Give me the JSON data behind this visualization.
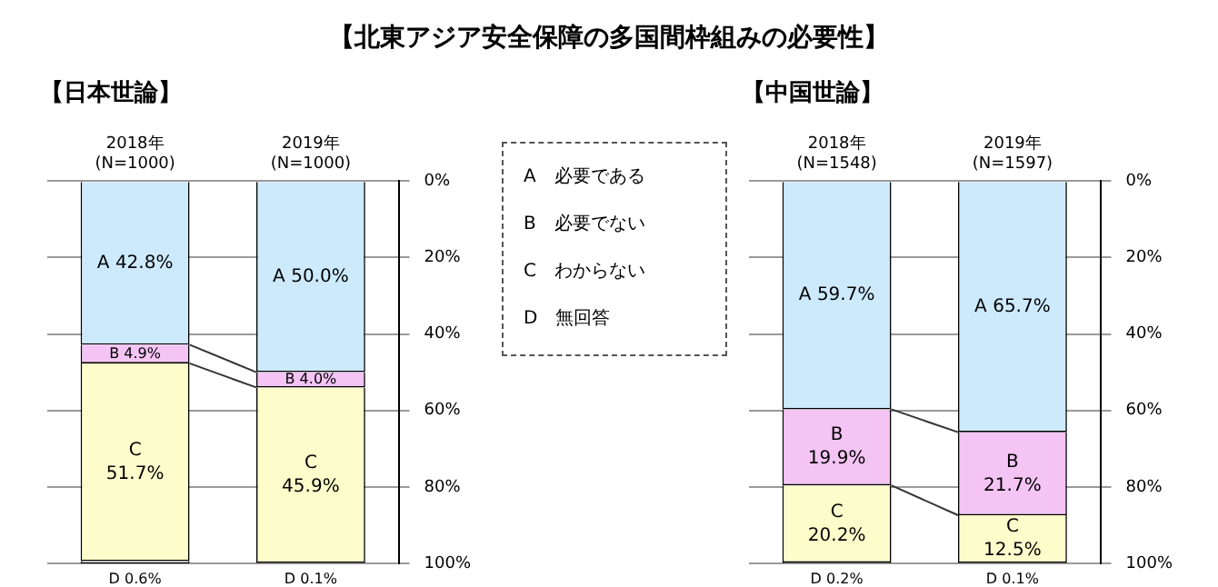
{
  "chart_data": [
    {
      "type": "bar",
      "title": "【北東アジア安全保障の多国間枠組みの必要性】",
      "subtitle": "【日本世論】",
      "categories": [
        "2018年\n(N=1000)",
        "2019年\n(N=1000)"
      ],
      "stacked": true,
      "ylim": [
        100,
        0
      ],
      "yticks": [
        {
          "value": 0,
          "label": "0%"
        },
        {
          "value": 20,
          "label": "20%"
        },
        {
          "value": 40,
          "label": "40%"
        },
        {
          "value": 60,
          "label": "60%"
        },
        {
          "value": 80,
          "label": "80%"
        },
        {
          "value": 100,
          "label": "100%"
        }
      ],
      "grid": "y",
      "legend": false,
      "annotations": [
        "A　必要である",
        "B　必要でない",
        "C　わからない",
        "D　無回答"
      ],
      "series": [
        {
          "color": "#cdeafd",
          "values": [
            42.8,
            50.0
          ],
          "value_labels": [
            "A 42.8%",
            "A 50.0%"
          ]
        },
        {
          "color": "#f4c4f4",
          "values": [
            4.9,
            4.0
          ],
          "value_labels": [
            "B 4.9%",
            "B 4.0%"
          ]
        },
        {
          "color": "#fdfdcc",
          "values": [
            51.7,
            45.9
          ],
          "value_labels": [
            "C\n51.7%",
            "C\n45.9%"
          ]
        },
        {
          "color": "#d9d9d9",
          "values": [
            0.6,
            0.1
          ],
          "value_labels": [
            "D 0.6%",
            "D 0.1%"
          ]
        }
      ]
    },
    {
      "type": "bar",
      "subtitle": "【中国世論】",
      "categories": [
        "2018年\n(N=1548)",
        "2019年\n(N=1597)"
      ],
      "stacked": true,
      "ylim": [
        100,
        0
      ],
      "yticks": [
        {
          "value": 0,
          "label": "0%"
        },
        {
          "value": 20,
          "label": "20%"
        },
        {
          "value": 40,
          "label": "40%"
        },
        {
          "value": 60,
          "label": "60%"
        },
        {
          "value": 80,
          "label": "80%"
        },
        {
          "value": 100,
          "label": "100%"
        }
      ],
      "grid": "y",
      "legend": false,
      "series": [
        {
          "color": "#cdeafd",
          "values": [
            59.7,
            65.7
          ],
          "value_labels": [
            "A 59.7%",
            "A 65.7%"
          ]
        },
        {
          "color": "#f4c4f4",
          "values": [
            19.9,
            21.7
          ],
          "value_labels": [
            "B\n19.9%",
            "B\n21.7%"
          ]
        },
        {
          "color": "#fdfdcc",
          "values": [
            20.2,
            12.5
          ],
          "value_labels": [
            "C\n20.2%",
            "C\n12.5%"
          ]
        },
        {
          "color": "#d9d9d9",
          "values": [
            0.2,
            0.1
          ],
          "value_labels": [
            "D 0.2%",
            "D 0.1%"
          ]
        }
      ]
    }
  ]
}
